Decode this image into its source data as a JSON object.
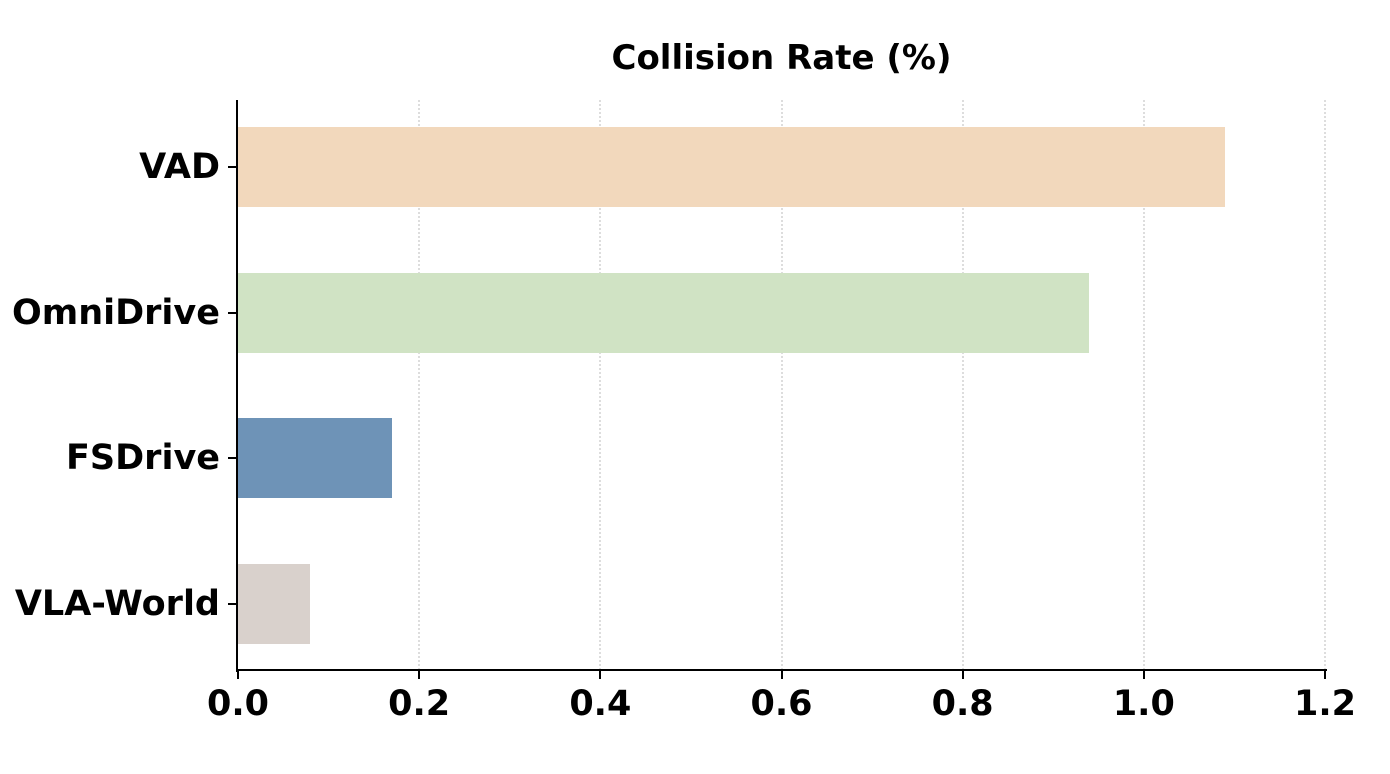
{
  "chart_data": {
    "type": "bar",
    "orientation": "horizontal",
    "title": "Collision Rate (%)",
    "xlabel": "",
    "ylabel": "",
    "categories": [
      "VAD",
      "OmniDrive",
      "FSDrive",
      "VLA-World"
    ],
    "values": [
      1.09,
      0.94,
      0.17,
      0.08
    ],
    "colors": [
      "#f2d8bc",
      "#d0e3c4",
      "#6e93b7",
      "#d9d1cc"
    ],
    "xlim": [
      0,
      1.2
    ],
    "xticks": [
      "0.0",
      "0.2",
      "0.4",
      "0.6",
      "0.8",
      "1.0",
      "1.2"
    ],
    "grid": "x dotted",
    "legend": null
  }
}
